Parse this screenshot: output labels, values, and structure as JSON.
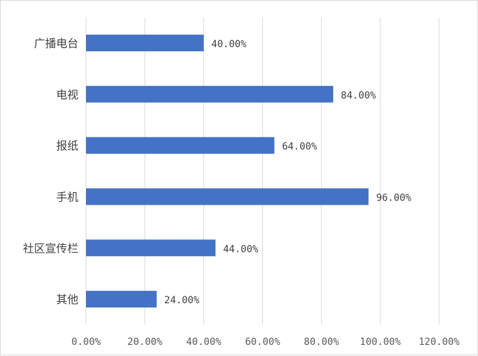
{
  "chart_data": {
    "type": "bar",
    "orientation": "horizontal",
    "categories": [
      "广播电台",
      "电视",
      "报纸",
      "手机",
      "社区宣传栏",
      "其他"
    ],
    "values": [
      40,
      84,
      64,
      96,
      44,
      24
    ],
    "data_labels": [
      "40.00%",
      "84.00%",
      "64.00%",
      "96.00%",
      "44.00%",
      "24.00%"
    ],
    "xlim": [
      0,
      120
    ],
    "x_ticks": [
      0,
      20,
      40,
      60,
      80,
      100,
      120
    ],
    "x_tick_labels": [
      "0.00%",
      "20.00%",
      "40.00%",
      "60.00%",
      "80.00%",
      "100.00%",
      "120.00%"
    ],
    "title": "",
    "xlabel": "",
    "ylabel": "",
    "grid": "vertical",
    "legend": "none",
    "bar_color": "#4472c4",
    "grid_color": "#d9d9d9"
  }
}
